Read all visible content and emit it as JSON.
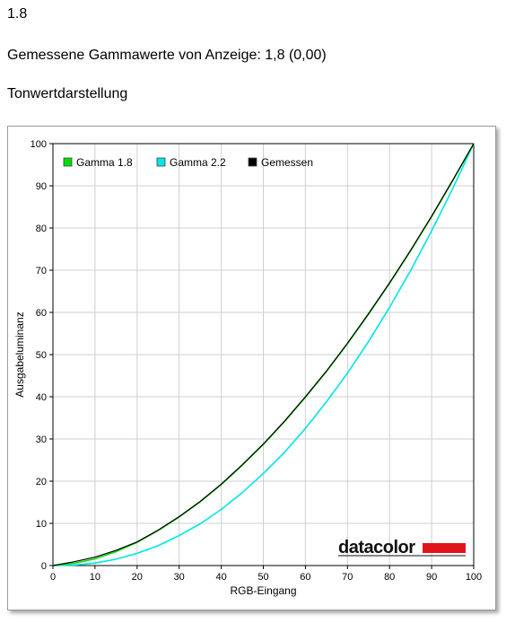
{
  "header": {
    "value": "1.8",
    "measured": "Gemessene Gammawerte von Anzeige: 1,8 (0,00)",
    "section_title": "Tonwertdarstellung"
  },
  "logo": {
    "text": "datacolor",
    "bar_color": "#e2141c"
  },
  "chart_data": {
    "type": "line",
    "xlabel": "RGB-Eingang",
    "ylabel": "Ausgabeluminanz",
    "xlim": [
      0,
      100
    ],
    "ylim": [
      0,
      100
    ],
    "xticks": [
      0,
      10,
      20,
      30,
      40,
      50,
      60,
      70,
      80,
      90,
      100
    ],
    "yticks": [
      0,
      10,
      20,
      30,
      40,
      50,
      60,
      70,
      80,
      90,
      100
    ],
    "grid": true,
    "legend_position": "top-left",
    "series": [
      {
        "name": "Gamma 1.8",
        "color": "#00dd00",
        "x": [
          0,
          5,
          10,
          15,
          20,
          25,
          30,
          35,
          40,
          45,
          50,
          55,
          60,
          65,
          70,
          75,
          80,
          85,
          90,
          95,
          100
        ],
        "y": [
          0,
          0.5,
          1.6,
          3.3,
          5.5,
          8.3,
          11.5,
          15.1,
          19.2,
          23.8,
          28.7,
          34.1,
          39.9,
          46.0,
          52.6,
          59.6,
          66.9,
          74.6,
          82.7,
          91.2,
          100
        ]
      },
      {
        "name": "Gamma 2.2",
        "color": "#00e5e5",
        "x": [
          0,
          5,
          10,
          15,
          20,
          25,
          30,
          35,
          40,
          45,
          50,
          55,
          60,
          65,
          70,
          75,
          80,
          85,
          90,
          95,
          100
        ],
        "y": [
          0,
          0.1,
          0.6,
          1.5,
          2.9,
          4.7,
          7.1,
          9.9,
          13.3,
          17.3,
          21.8,
          26.8,
          32.5,
          38.8,
          45.6,
          53.1,
          61.2,
          69.9,
          79.3,
          89.3,
          100
        ]
      },
      {
        "name": "Gemessen",
        "color": "#000000",
        "x": [
          0,
          5,
          10,
          15,
          20,
          25,
          30,
          35,
          40,
          45,
          50,
          55,
          60,
          65,
          70,
          75,
          80,
          85,
          90,
          95,
          100
        ],
        "y": [
          0,
          0.9,
          2.0,
          3.6,
          5.6,
          8.4,
          11.6,
          15.2,
          19.3,
          23.9,
          28.8,
          34.2,
          40.0,
          46.1,
          52.7,
          59.7,
          67.0,
          74.7,
          82.8,
          91.3,
          100
        ]
      }
    ]
  }
}
